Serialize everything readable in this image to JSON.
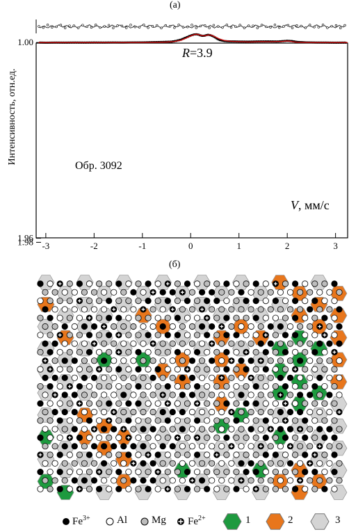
{
  "panel_labels": {
    "a": "(а)",
    "b": "(б)"
  },
  "chart_data": {
    "type": "scatter",
    "ylabel": "Интенсивность, отн.ед.",
    "xlabel": "V, мм/с",
    "annotations": [
      "R=3.9",
      "Обр. 3092"
    ],
    "xlim": [
      -3.2,
      3.25
    ],
    "ylim": [
      1.958,
      1.003
    ],
    "x_ticks": [
      -3,
      -2,
      -1,
      0,
      1,
      2,
      3
    ],
    "y_ticks": [
      1.96,
      1.98,
      1.0
    ],
    "y_tick_labels": [
      "1.96",
      "1.98",
      "1.00"
    ],
    "series": [
      {
        "kind": "points",
        "color": "#000000",
        "x": [
          -3.15,
          -3.0,
          -2.8,
          -2.6,
          -2.4,
          -2.2,
          -2.0,
          -1.8,
          -1.6,
          -1.4,
          -1.2,
          -1.0,
          -0.8,
          -0.6,
          -0.4,
          -0.3,
          -0.2,
          -0.1,
          0.0,
          0.05,
          0.1,
          0.15,
          0.2,
          0.25,
          0.3,
          0.35,
          0.4,
          0.45,
          0.5,
          0.55,
          0.6,
          0.7,
          0.8,
          1.0,
          1.2,
          1.4,
          1.6,
          1.8,
          1.9,
          2.0,
          2.1,
          2.2,
          2.4,
          2.6,
          2.8,
          3.0,
          3.2
        ],
        "y": [
          1.0003,
          1.0008,
          1.0004,
          1.0006,
          1.0003,
          1.0005,
          1.0002,
          1.0004,
          1.0001,
          1.0003,
          0.9998,
          0.9995,
          0.9985,
          0.9975,
          0.996,
          0.992,
          0.986,
          0.976,
          0.966,
          0.962,
          0.9595,
          0.9605,
          0.965,
          0.968,
          0.966,
          0.962,
          0.9635,
          0.968,
          0.974,
          0.982,
          0.988,
          0.993,
          0.9945,
          0.9955,
          0.996,
          0.995,
          0.9948,
          0.9952,
          0.9935,
          0.9915,
          0.993,
          0.997,
          0.9995,
          1.0003,
          1.0004,
          1.0008,
          1.0005
        ]
      },
      {
        "kind": "fit",
        "color": "#d01010",
        "x": [
          -3.15,
          -2.5,
          -2.0,
          -1.5,
          -1.0,
          -0.7,
          -0.5,
          -0.35,
          -0.2,
          -0.1,
          0.0,
          0.05,
          0.1,
          0.15,
          0.2,
          0.25,
          0.3,
          0.35,
          0.4,
          0.45,
          0.5,
          0.6,
          0.7,
          0.8,
          0.9,
          1.0,
          1.1,
          1.2,
          1.3,
          1.4,
          1.5,
          1.6,
          1.7,
          1.8,
          1.9,
          1.95,
          2.0,
          2.05,
          2.1,
          2.2,
          2.4,
          2.6,
          3.0,
          3.25
        ],
        "y": [
          1.0003,
          1.0003,
          1.0003,
          1.0002,
          0.9998,
          0.999,
          0.998,
          0.9955,
          0.989,
          0.979,
          0.968,
          0.963,
          0.9598,
          0.9605,
          0.9645,
          0.967,
          0.9665,
          0.9635,
          0.9628,
          0.966,
          0.972,
          0.983,
          0.9905,
          0.9935,
          0.995,
          0.9958,
          0.9965,
          0.9975,
          0.997,
          0.9958,
          0.9955,
          0.9965,
          0.9958,
          0.995,
          0.995,
          0.9935,
          0.9925,
          0.9935,
          0.996,
          0.9985,
          1.0,
          1.0003,
          1.0003,
          1.0003
        ]
      },
      {
        "kind": "residual",
        "color": "#000000",
        "note": "difference curve above spectrum"
      }
    ]
  },
  "legend": [
    {
      "symbol": "black-dot",
      "label": "Fe",
      "sup": "3+"
    },
    {
      "symbol": "white-dot",
      "label": "Al",
      "sup": ""
    },
    {
      "symbol": "gray-dot",
      "label": "Mg",
      "sup": ""
    },
    {
      "symbol": "cross-dot",
      "label": "Fe",
      "sup": "2+"
    },
    {
      "symbol": "green-hex",
      "label": "1",
      "sup": ""
    },
    {
      "symbol": "orange-hex",
      "label": "2",
      "sup": ""
    },
    {
      "symbol": "gray-hex",
      "label": "3",
      "sup": ""
    }
  ],
  "colors": {
    "green": "#1e9a3f",
    "orange": "#e8761c",
    "gray": "#d4d4d4",
    "fit": "#d01010"
  }
}
